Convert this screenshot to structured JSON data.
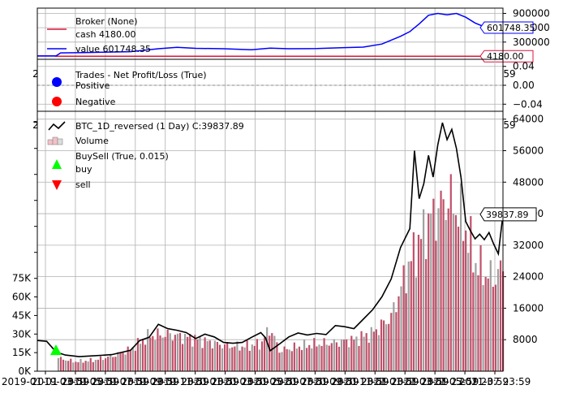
{
  "chart_data": [
    {
      "type": "line",
      "panel": "broker",
      "legend": [
        {
          "label": "Broker (None)",
          "color": "#dc143c"
        },
        {
          "label": "cash 4180.00",
          "color": "#dc143c"
        },
        {
          "label": "value 601748.35",
          "color": "#0000ff"
        }
      ],
      "yticks": [
        "900000",
        "600000",
        "300000"
      ],
      "ylim": [
        -60000,
        1010000
      ],
      "series": [
        {
          "name": "cash",
          "color": "#dc143c",
          "last_label": "4180.00",
          "values": [
            [
              0,
              10000
            ],
            [
              0.04,
              10000
            ],
            [
              0.04,
              4180
            ],
            [
              1,
              4180
            ]
          ]
        },
        {
          "name": "value",
          "color": "#0000ff",
          "last_label": "601748.35",
          "values": [
            [
              0,
              10000
            ],
            [
              0.04,
              10000
            ],
            [
              0.05,
              75000
            ],
            [
              0.1,
              80000
            ],
            [
              0.2,
              100000
            ],
            [
              0.26,
              160000
            ],
            [
              0.3,
              190000
            ],
            [
              0.34,
              170000
            ],
            [
              0.4,
              160000
            ],
            [
              0.46,
              140000
            ],
            [
              0.5,
              175000
            ],
            [
              0.54,
              160000
            ],
            [
              0.6,
              165000
            ],
            [
              0.66,
              185000
            ],
            [
              0.7,
              195000
            ],
            [
              0.74,
              260000
            ],
            [
              0.78,
              420000
            ],
            [
              0.8,
              520000
            ],
            [
              0.82,
              680000
            ],
            [
              0.84,
              860000
            ],
            [
              0.86,
              900000
            ],
            [
              0.88,
              870000
            ],
            [
              0.9,
              900000
            ],
            [
              0.92,
              820000
            ],
            [
              0.94,
              700000
            ],
            [
              0.96,
              620000
            ],
            [
              0.98,
              560000
            ],
            [
              1,
              601748
            ]
          ]
        }
      ]
    },
    {
      "type": "scatter",
      "panel": "trades",
      "legend": [
        {
          "label": "Trades - Net Profit/Loss (True)",
          "color": null
        },
        {
          "label": "Positive",
          "color": "#0000ff"
        },
        {
          "label": "Negative",
          "color": "#ff0000"
        }
      ],
      "yticks": [
        "0.04",
        "0.00",
        "−0.04"
      ],
      "ylim": [
        -0.055,
        0.055
      ],
      "series": []
    },
    {
      "type": "line",
      "panel": "price",
      "legend": [
        {
          "label": "BTC_1D_reversed (1 Day) C:39837.89",
          "color": "#000000"
        },
        {
          "label": "Volume",
          "color": "#dddddd"
        },
        {
          "label": "BuySell (True, 0.015)",
          "color": null
        },
        {
          "label": "buy",
          "color": "#00ff00"
        },
        {
          "label": "sell",
          "color": "#ff0000"
        }
      ],
      "yticks_right": [
        "64000",
        "56000",
        "48000",
        "40000",
        "32000",
        "24000",
        "16000",
        "8000"
      ],
      "ylim_right": [
        0,
        66000
      ],
      "yticks_left": [
        "75K",
        "60K",
        "45K",
        "30K",
        "15K",
        "0K"
      ],
      "ylim_left": [
        0,
        210000
      ],
      "last_label": "39837.89",
      "close": [
        [
          0,
          7800
        ],
        [
          0.02,
          7600
        ],
        [
          0.04,
          4900
        ],
        [
          0.06,
          4100
        ],
        [
          0.09,
          3700
        ],
        [
          0.12,
          3900
        ],
        [
          0.16,
          4200
        ],
        [
          0.2,
          5300
        ],
        [
          0.22,
          7800
        ],
        [
          0.24,
          8600
        ],
        [
          0.26,
          11900
        ],
        [
          0.28,
          10800
        ],
        [
          0.3,
          10400
        ],
        [
          0.32,
          9800
        ],
        [
          0.34,
          8300
        ],
        [
          0.36,
          9400
        ],
        [
          0.38,
          8700
        ],
        [
          0.4,
          7300
        ],
        [
          0.42,
          7100
        ],
        [
          0.44,
          7300
        ],
        [
          0.46,
          8600
        ],
        [
          0.48,
          9800
        ],
        [
          0.49,
          8500
        ],
        [
          0.5,
          5200
        ],
        [
          0.52,
          6900
        ],
        [
          0.54,
          8700
        ],
        [
          0.56,
          9700
        ],
        [
          0.58,
          9200
        ],
        [
          0.6,
          9600
        ],
        [
          0.62,
          9300
        ],
        [
          0.64,
          11600
        ],
        [
          0.66,
          11300
        ],
        [
          0.68,
          10800
        ],
        [
          0.7,
          13200
        ],
        [
          0.72,
          15600
        ],
        [
          0.74,
          18900
        ],
        [
          0.76,
          23400
        ],
        [
          0.78,
          31400
        ],
        [
          0.8,
          36200
        ],
        [
          0.81,
          56000
        ],
        [
          0.82,
          43800
        ],
        [
          0.83,
          47600
        ],
        [
          0.84,
          54800
        ],
        [
          0.85,
          49300
        ],
        [
          0.86,
          57400
        ],
        [
          0.87,
          63100
        ],
        [
          0.88,
          58800
        ],
        [
          0.89,
          61400
        ],
        [
          0.9,
          56600
        ],
        [
          0.91,
          49200
        ],
        [
          0.92,
          38000
        ],
        [
          0.93,
          35700
        ],
        [
          0.94,
          33600
        ],
        [
          0.95,
          34800
        ],
        [
          0.96,
          33400
        ],
        [
          0.97,
          35200
        ],
        [
          0.98,
          32300
        ],
        [
          0.99,
          29800
        ],
        [
          1,
          39837
        ]
      ],
      "volume_profile": [
        [
          0,
          6000
        ],
        [
          0.04,
          5000
        ],
        [
          0.08,
          3500
        ],
        [
          0.12,
          4000
        ],
        [
          0.16,
          5500
        ],
        [
          0.2,
          8000
        ],
        [
          0.24,
          13000
        ],
        [
          0.28,
          13500
        ],
        [
          0.32,
          12500
        ],
        [
          0.36,
          11000
        ],
        [
          0.4,
          9500
        ],
        [
          0.44,
          9000
        ],
        [
          0.48,
          10000
        ],
        [
          0.5,
          16000
        ],
        [
          0.52,
          7500
        ],
        [
          0.56,
          9000
        ],
        [
          0.6,
          10000
        ],
        [
          0.64,
          10500
        ],
        [
          0.68,
          11500
        ],
        [
          0.72,
          14000
        ],
        [
          0.76,
          20000
        ],
        [
          0.8,
          40000
        ],
        [
          0.84,
          55000
        ],
        [
          0.88,
          63000
        ],
        [
          0.9,
          60000
        ],
        [
          0.92,
          52000
        ],
        [
          0.94,
          40000
        ],
        [
          0.96,
          36000
        ],
        [
          0.98,
          34000
        ],
        [
          1,
          38000
        ]
      ],
      "buy_markers": [
        [
          0.04,
          17000
        ]
      ],
      "sell_markers": []
    }
  ],
  "x_axis": {
    "ticks": [
      "2019-01",
      "2019-03",
      "2019-05",
      "2019-07",
      "2019-09",
      "2019-11",
      "2020-01",
      "2020-03",
      "2020-05",
      "2020-07",
      "2020-09",
      "2020-11",
      "2021-01",
      "2021-03",
      "2021-05",
      "2021-07 23:59"
    ],
    "shown_label": "2019-01-01 23:59 ... 2021-07-01 23:59"
  }
}
